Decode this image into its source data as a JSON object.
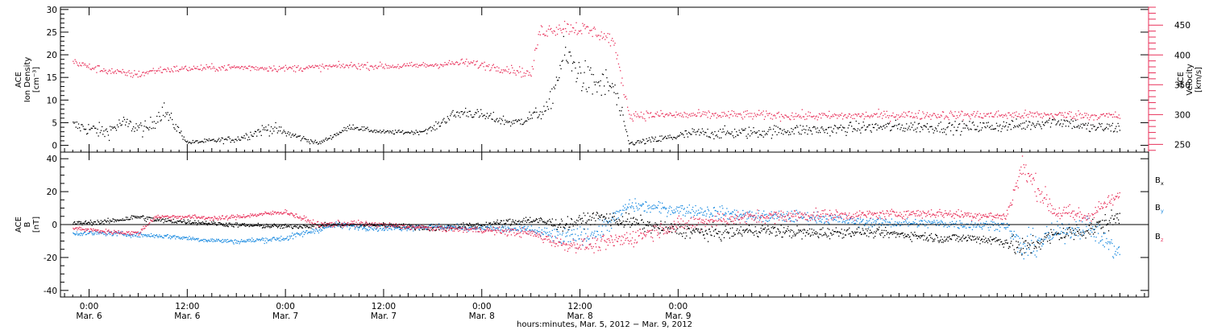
{
  "chart_data": [
    {
      "type": "scatter",
      "panel": "top",
      "ylabel_left": [
        "ACE",
        "Ion Density",
        "[cm⁻³]"
      ],
      "ylabel_right": [
        "ACE",
        "Velocity",
        "[km/s]"
      ],
      "ylim_left": [
        -1.5,
        30.5
      ],
      "ylim_right": [
        237,
        480
      ],
      "yticks_left": [
        "0",
        "5",
        "10",
        "15",
        "20",
        "25",
        "30"
      ],
      "yticks_right": [
        "250",
        "300",
        "350",
        "400",
        "450"
      ],
      "colors": {
        "density": "#000000",
        "velocity": "#e8305a"
      },
      "series": [
        {
          "key": "density",
          "axis": "left",
          "x_hours": [
            -2,
            2,
            4,
            7,
            9,
            12,
            18,
            22,
            28,
            32,
            34,
            36,
            40,
            42,
            44,
            46,
            52,
            56,
            58,
            61,
            64,
            66,
            70,
            74,
            78,
            82,
            86,
            90,
            94,
            98,
            102,
            106,
            110,
            114,
            118,
            120,
            122,
            124,
            126
          ],
          "values": [
            4.5,
            3.0,
            5.0,
            3.5,
            8.0,
            0.7,
            1.5,
            4.0,
            0.5,
            4.3,
            3.5,
            3.0,
            3.0,
            3.8,
            6.5,
            7.5,
            5.0,
            8.0,
            20.0,
            14.0,
            13.0,
            0.5,
            1.5,
            2.8,
            2.8,
            3.0,
            3.5,
            3.5,
            4.0,
            4.2,
            4.2,
            4.0,
            4.3,
            4.5,
            5.5,
            5.0,
            4.0,
            4.0,
            4.0
          ],
          "spread": [
            1.6,
            1.8,
            1.8,
            1.8,
            2.2,
            0.4,
            0.8,
            1.5,
            0.4,
            0.7,
            0.5,
            0.5,
            0.5,
            0.8,
            1.3,
            1.3,
            1.2,
            1.8,
            4.5,
            4.0,
            4.0,
            0.5,
            1.0,
            1.3,
            1.4,
            1.4,
            1.4,
            1.4,
            1.4,
            1.4,
            1.4,
            1.4,
            1.4,
            1.4,
            1.4,
            1.4,
            1.4,
            1.4,
            1.4
          ]
        },
        {
          "key": "velocity",
          "axis": "right",
          "x_hours": [
            -2,
            0,
            4,
            6,
            8,
            12,
            18,
            24,
            28,
            32,
            34,
            38,
            42,
            46,
            52,
            54,
            55,
            58,
            60,
            62,
            64,
            66,
            70,
            80,
            90,
            100,
            110,
            120,
            126
          ],
          "values": [
            390,
            380,
            370,
            368,
            375,
            378,
            380,
            378,
            380,
            383,
            382,
            382,
            384,
            388,
            375,
            368,
            440,
            448,
            445,
            438,
            425,
            300,
            300,
            300,
            298,
            300,
            300,
            300,
            298
          ],
          "spread": [
            7,
            7,
            7,
            7,
            7,
            6,
            6,
            6,
            6,
            6,
            6,
            6,
            6,
            7,
            8,
            9,
            12,
            14,
            14,
            12,
            12,
            9,
            8,
            8,
            8,
            8,
            8,
            8,
            8
          ]
        }
      ]
    },
    {
      "type": "scatter",
      "panel": "bottom",
      "ylabel": [
        "ACE",
        "B",
        "[nT]"
      ],
      "ylim": [
        -44,
        44
      ],
      "yticks": [
        "40",
        "20",
        "0",
        "-20",
        "-40"
      ],
      "reference_line_y": 0,
      "colors": {
        "Bx": "#000000",
        "By": "#1a8ae0",
        "Bz": "#e8305a"
      },
      "legend": [
        {
          "key": "Bx",
          "main": "B",
          "sub": "x"
        },
        {
          "key": "By",
          "main": "B",
          "sub": "y"
        },
        {
          "key": "Bz",
          "main": "B",
          "sub": "z"
        }
      ],
      "series": [
        {
          "key": "Bx",
          "x_hours": [
            -2,
            2,
            6,
            8,
            12,
            18,
            24,
            30,
            36,
            42,
            48,
            54,
            58,
            62,
            66,
            70,
            76,
            82,
            88,
            94,
            100,
            104,
            108,
            112,
            114,
            118,
            122,
            126
          ],
          "values": [
            1,
            2,
            5,
            3,
            2,
            0,
            -1,
            0,
            0,
            -2,
            0,
            3,
            0,
            5,
            2,
            -2,
            -5,
            -3,
            -5,
            -4,
            -6,
            -8,
            -8,
            -10,
            -15,
            -6,
            -3,
            5
          ],
          "spread": [
            1.5,
            1.5,
            2,
            2,
            1.5,
            1.5,
            1.5,
            1.5,
            1.5,
            2,
            2,
            3,
            4,
            4,
            5,
            4,
            5,
            4,
            4,
            3,
            3,
            3,
            3,
            4,
            8,
            5,
            6,
            6
          ]
        },
        {
          "key": "By",
          "x_hours": [
            -2,
            2,
            6,
            10,
            14,
            18,
            24,
            30,
            36,
            42,
            48,
            54,
            58,
            62,
            66,
            70,
            76,
            82,
            88,
            94,
            100,
            104,
            108,
            112,
            114,
            118,
            122,
            126
          ],
          "values": [
            -5,
            -5,
            -6,
            -7,
            -9,
            -10,
            -8,
            0,
            -2,
            -1,
            -2,
            -3,
            -8,
            -5,
            12,
            10,
            8,
            5,
            5,
            2,
            1,
            1,
            0,
            0,
            -15,
            -5,
            0,
            -18
          ],
          "spread": [
            1.5,
            1.5,
            1.5,
            1.5,
            1.5,
            1.5,
            2,
            2,
            2,
            2,
            2,
            3,
            6,
            6,
            4,
            4,
            4,
            4,
            4,
            3,
            3,
            3,
            3,
            3,
            10,
            6,
            7,
            6
          ]
        },
        {
          "key": "Bz",
          "x_hours": [
            -2,
            2,
            6,
            8,
            12,
            16,
            20,
            24,
            28,
            32,
            36,
            42,
            48,
            54,
            58,
            62,
            66,
            70,
            76,
            82,
            88,
            94,
            100,
            104,
            108,
            112,
            114,
            118,
            122,
            124,
            126
          ],
          "values": [
            -2,
            -4,
            -5,
            5,
            5,
            4,
            6,
            8,
            0,
            1,
            0,
            -2,
            -3,
            -5,
            -12,
            -12,
            -8,
            -2,
            3,
            5,
            6,
            6,
            7,
            7,
            6,
            5,
            35,
            8,
            5,
            12,
            18
          ],
          "spread": [
            1.5,
            1.5,
            1.5,
            1.5,
            1.5,
            1.5,
            1.5,
            1.5,
            2,
            2,
            2,
            2,
            2,
            3,
            4,
            5,
            6,
            5,
            5,
            4,
            4,
            3,
            3,
            3,
            3,
            3,
            8,
            6,
            6,
            5,
            3
          ]
        }
      ]
    }
  ],
  "x_axis": {
    "range_hours": [
      -3.5,
      129.5
    ],
    "ticks": [
      {
        "hour": 0,
        "time": "0:00",
        "date": "Mar. 6"
      },
      {
        "hour": 12,
        "time": "12:00",
        "date": "Mar. 6"
      },
      {
        "hour": 24,
        "time": "0:00",
        "date": "Mar. 7"
      },
      {
        "hour": 36,
        "time": "12:00",
        "date": "Mar. 7"
      },
      {
        "hour": 48,
        "time": "0:00",
        "date": "Mar. 8"
      },
      {
        "hour": 60,
        "time": "12:00",
        "date": "Mar. 8"
      },
      {
        "hour": 72,
        "time": "0:00",
        "date": "Mar. 9"
      }
    ],
    "label": "hours:minutes, Mar. 5, 2012 − Mar. 9, 2012"
  }
}
